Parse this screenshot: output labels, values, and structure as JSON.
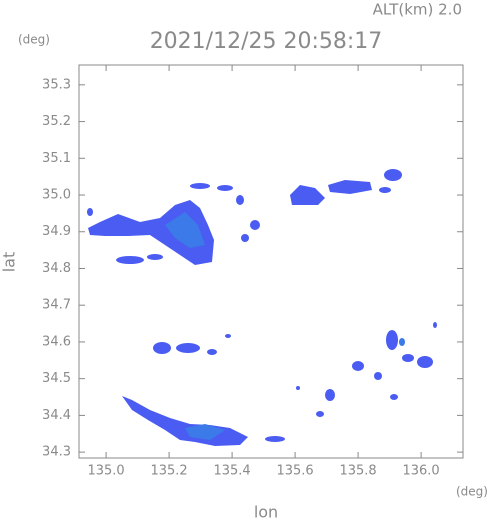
{
  "chart_data": {
    "type": "radar-map",
    "title": "2021/12/25 20:58:17",
    "altitude_label": "ALT(km)  2.0",
    "y_unit": "(deg)",
    "x_unit": "(deg)",
    "xlabel": "lon",
    "ylabel": "lat",
    "xlim": [
      134.914,
      136.133
    ],
    "ylim": [
      34.284,
      35.354
    ],
    "xticks": [
      {
        "value": 135.0,
        "label": "135.0"
      },
      135.2,
      135.4,
      135.6,
      135.8,
      {
        "value": 136.0,
        "label": "136.0"
      }
    ],
    "yticks": [
      34.3,
      34.4,
      34.5,
      34.6,
      34.7,
      34.8,
      34.9,
      {
        "value": 35.0,
        "label": "35.0"
      },
      35.1,
      35.2,
      35.3
    ]
  }
}
